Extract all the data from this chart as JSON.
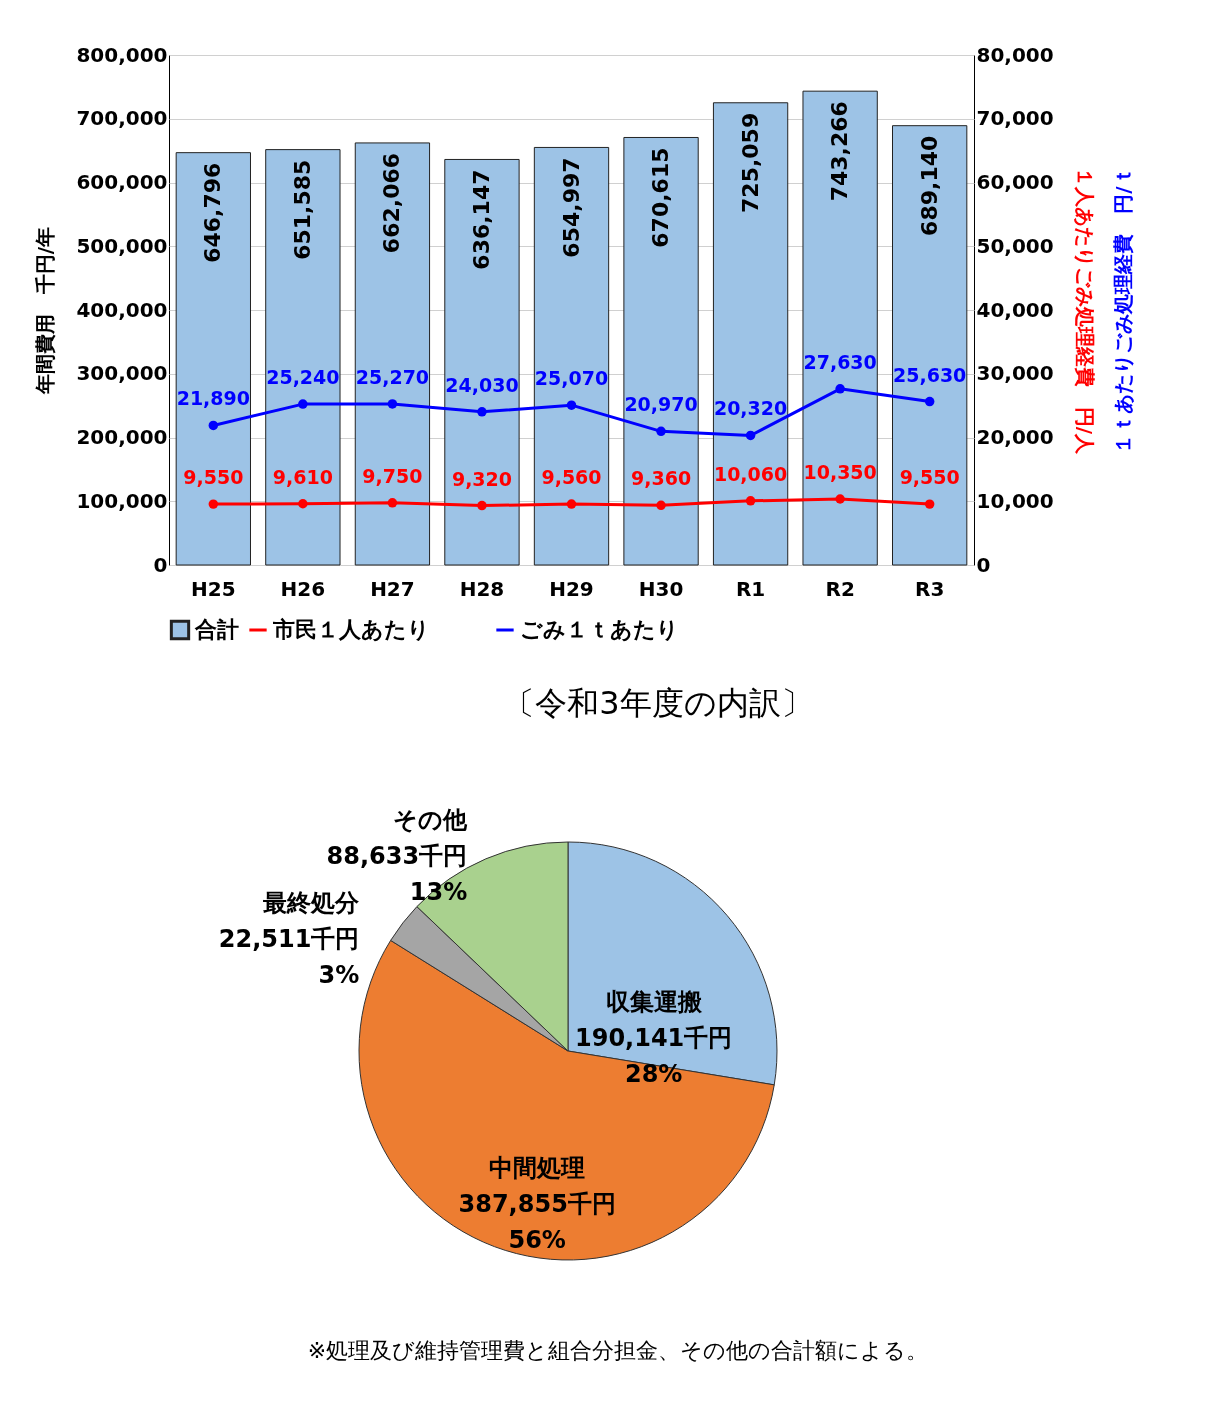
{
  "chart_data": [
    {
      "type": "bar",
      "categories": [
        "H25",
        "H26",
        "H27",
        "H28",
        "H29",
        "H30",
        "R1",
        "R2",
        "R3"
      ],
      "ylabel": "年間費用　千円/年",
      "y2label": "１人あたりごみ処理経費　円/人",
      "annotations": [
        "１ｔあたりごみ処理経費　円/ｔ"
      ],
      "ylim": [
        0,
        800000
      ],
      "yticks": [
        0,
        {
          "value": 100000,
          "label": "100,000"
        },
        {
          "value": 200000,
          "label": "200,000"
        },
        {
          "value": 300000,
          "label": "300,000"
        },
        {
          "value": 400000,
          "label": "400,000"
        },
        {
          "value": 500000,
          "label": "500,000"
        },
        {
          "value": 600000,
          "label": "600,000"
        },
        {
          "value": 700000,
          "label": "700,000"
        },
        {
          "value": 800000,
          "label": "800,000"
        }
      ],
      "y2lim": [
        0,
        80000
      ],
      "y2ticks": [
        0,
        {
          "value": 10000,
          "label": "10,000"
        },
        {
          "value": 20000,
          "label": "20,000"
        },
        {
          "value": 30000,
          "label": "30,000"
        },
        {
          "value": 40000,
          "label": "40,000"
        },
        {
          "value": 50000,
          "label": "50,000"
        },
        {
          "value": 60000,
          "label": "60,000"
        },
        {
          "value": 70000,
          "label": "70,000"
        },
        {
          "value": 80000,
          "label": "80,000"
        }
      ],
      "grid": "y",
      "legend": "bottom",
      "marker": "circle",
      "line_style": "solid",
      "series": [
        {
          "name": "合計",
          "type": "bar",
          "color": "#9dc3e6",
          "values": [
            646796,
            651585,
            662066,
            636147,
            654997,
            670615,
            725059,
            743266,
            689140
          ],
          "value_labels": [
            "646,796",
            "651,585",
            "662,066",
            "636,147",
            "654,997",
            "670,615",
            "725,059",
            "743,266",
            "689,140"
          ]
        },
        {
          "name": "市民１人あたり",
          "type": "line",
          "axis": "y2",
          "color": "#ff0000",
          "values": [
            9550,
            9610,
            9750,
            9320,
            9560,
            9360,
            10060,
            10350,
            9550
          ],
          "value_labels": [
            "9,550",
            "9,610",
            "9,750",
            "9,320",
            "9,560",
            "9,360",
            "10,060",
            "10,350",
            "9,550"
          ]
        },
        {
          "name": "ごみ１ｔあたり",
          "type": "line",
          "axis": "y2",
          "color": "#0000ff",
          "values": [
            21890,
            25240,
            25270,
            24030,
            25070,
            20970,
            20320,
            27630,
            25630
          ],
          "value_labels": [
            "21,890",
            "25,240",
            "25,270",
            "24,030",
            "25,070",
            "20,970",
            "20,320",
            "27,630",
            "25,630"
          ]
        }
      ]
    },
    {
      "type": "pie",
      "title": "〔令和3年度の内訳〕",
      "categories": [
        "収集運搬",
        "中間処理",
        "最終処分",
        "その他"
      ],
      "values": [
        190141,
        387855,
        22511,
        88633
      ],
      "colors": [
        "#9dc3e6",
        "#ed7d31",
        "#a5a5a5",
        "#a9d18e"
      ],
      "value_labels": [
        "190,141千円\n28%",
        "387,855千円\n56%",
        "22,511千円\n3%",
        "88,633千円\n13%"
      ],
      "annotations": [
        "※処理及び維持管理費と組合分担金、その他の合計額による。"
      ]
    }
  ]
}
